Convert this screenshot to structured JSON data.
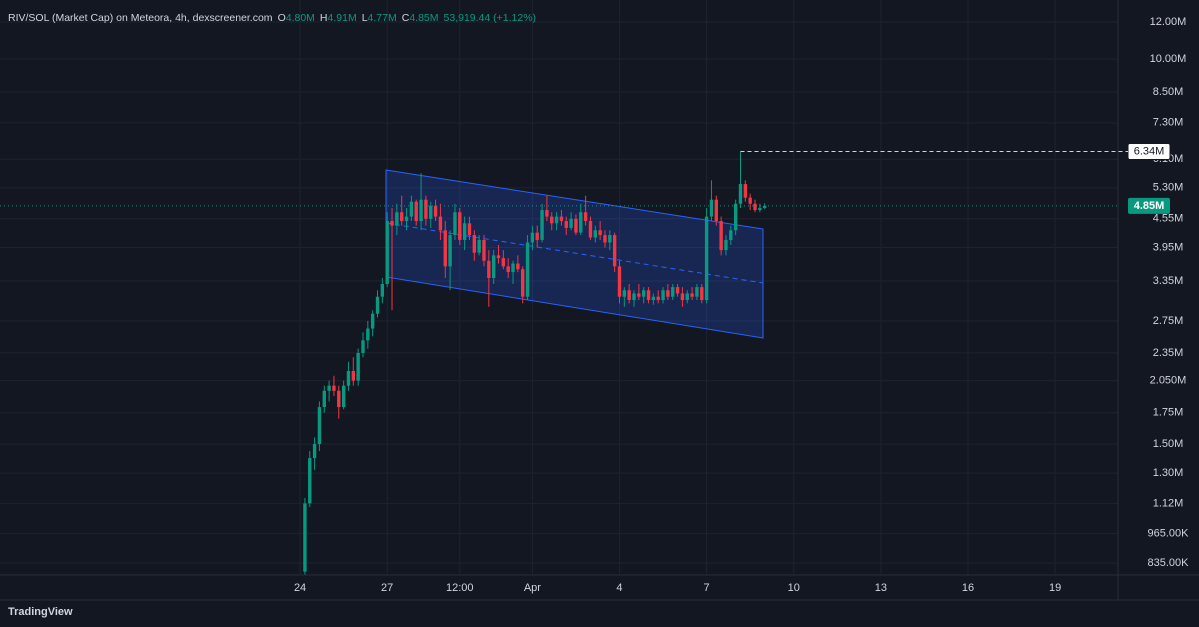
{
  "chart_data": {
    "type": "candlestick",
    "header": {
      "title": "RIV/SOL (Market Cap) on Meteora, 4h, dexscreener.com",
      "ohlc": [
        {
          "key": "O",
          "value": "4.80M"
        },
        {
          "key": "H",
          "value": "4.91M"
        },
        {
          "key": "L",
          "value": "4.77M"
        },
        {
          "key": "C",
          "value": "4.85M"
        }
      ],
      "change": "53,919.44 (+1.12%)"
    },
    "brand": "TradingView",
    "log_scale": true,
    "grid": true,
    "up_color": "#089981",
    "down_color": "#f23645",
    "ylim": [
      787000,
      13370000
    ],
    "yticks": [
      {
        "value": 12000000,
        "label": "12.00M"
      },
      {
        "value": 10000000,
        "label": "10.00M"
      },
      {
        "value": 8500000,
        "label": "8.50M"
      },
      {
        "value": 7300000,
        "label": "7.30M"
      },
      {
        "value": 6100000,
        "label": "6.10M"
      },
      {
        "value": 5300000,
        "label": "5.30M"
      },
      {
        "value": 4550000,
        "label": "4.55M"
      },
      {
        "value": 3950000,
        "label": "3.95M"
      },
      {
        "value": 3350000,
        "label": "3.35M"
      },
      {
        "value": 2750000,
        "label": "2.75M"
      },
      {
        "value": 2350000,
        "label": "2.35M"
      },
      {
        "value": 2050000,
        "label": "2.050M"
      },
      {
        "value": 1750000,
        "label": "1.75M"
      },
      {
        "value": 1500000,
        "label": "1.50M"
      },
      {
        "value": 1300000,
        "label": "1.30M"
      },
      {
        "value": 1120000,
        "label": "1.12M"
      },
      {
        "value": 965000,
        "label": "965.00K"
      },
      {
        "value": 835000,
        "label": "835.00K"
      }
    ],
    "xlim": [
      -62,
      169
    ],
    "xticks": [
      {
        "value": 0,
        "label": "24"
      },
      {
        "value": 18,
        "label": "27"
      },
      {
        "value": 33,
        "label": "12:00"
      },
      {
        "value": 48,
        "label": "Apr"
      },
      {
        "value": 66,
        "label": "4"
      },
      {
        "value": 84,
        "label": "7"
      },
      {
        "value": 102,
        "label": "10"
      },
      {
        "value": 120,
        "label": "13"
      },
      {
        "value": 138,
        "label": "16"
      },
      {
        "value": 156,
        "label": "19"
      }
    ],
    "price_label": {
      "value": 4850000,
      "label": "4.85M"
    },
    "high_label": {
      "value": 6340000,
      "label": "6.34M"
    },
    "x": [
      1,
      2,
      3,
      4,
      5,
      6,
      7,
      8,
      9,
      10,
      11,
      12,
      13,
      14,
      15,
      16,
      17,
      18,
      19,
      20,
      21,
      22,
      23,
      24,
      25,
      26,
      27,
      28,
      29,
      30,
      31,
      32,
      33,
      34,
      35,
      36,
      37,
      38,
      39,
      40,
      41,
      42,
      43,
      44,
      45,
      46,
      47,
      48,
      49,
      50,
      51,
      52,
      53,
      54,
      55,
      56,
      57,
      58,
      59,
      60,
      61,
      62,
      63,
      64,
      65,
      66,
      67,
      68,
      69,
      70,
      71,
      72,
      73,
      74,
      75,
      76,
      77,
      78,
      79,
      80,
      81,
      82,
      83,
      84,
      85,
      86,
      87,
      88,
      89,
      90,
      91,
      92,
      93,
      94,
      95,
      96
    ],
    "ohlc": [
      [
        800000,
        1150000,
        780000,
        1120000
      ],
      [
        1120000,
        1450000,
        1100000,
        1400000
      ],
      [
        1400000,
        1550000,
        1320000,
        1500000
      ],
      [
        1500000,
        1850000,
        1450000,
        1800000
      ],
      [
        1800000,
        2000000,
        1750000,
        1950000
      ],
      [
        1950000,
        2050000,
        1850000,
        2000000
      ],
      [
        2000000,
        2100000,
        1900000,
        1950000
      ],
      [
        1950000,
        2000000,
        1700000,
        1800000
      ],
      [
        1800000,
        2050000,
        1780000,
        2000000
      ],
      [
        2000000,
        2250000,
        1950000,
        2150000
      ],
      [
        2150000,
        2300000,
        2000000,
        2050000
      ],
      [
        2050000,
        2400000,
        2000000,
        2350000
      ],
      [
        2350000,
        2600000,
        2300000,
        2500000
      ],
      [
        2500000,
        2750000,
        2400000,
        2650000
      ],
      [
        2650000,
        2900000,
        2550000,
        2850000
      ],
      [
        2850000,
        3200000,
        2800000,
        3100000
      ],
      [
        3100000,
        3400000,
        3000000,
        3300000
      ],
      [
        3300000,
        4700000,
        3250000,
        4500000
      ],
      [
        4500000,
        4800000,
        2900000,
        4400000
      ],
      [
        4400000,
        4900000,
        4200000,
        4700000
      ],
      [
        4700000,
        5100000,
        4400000,
        4500000
      ],
      [
        4500000,
        4800000,
        4300000,
        4600000
      ],
      [
        4600000,
        5100000,
        4500000,
        4950000
      ],
      [
        4950000,
        5000000,
        4400000,
        4500000
      ],
      [
        4500000,
        5700000,
        4300000,
        5000000
      ],
      [
        5000000,
        5100000,
        4400000,
        4550000
      ],
      [
        4550000,
        4950000,
        4350000,
        4850000
      ],
      [
        4850000,
        5000000,
        4500000,
        4600000
      ],
      [
        4600000,
        4900000,
        4100000,
        4300000
      ],
      [
        4300000,
        4500000,
        3400000,
        3600000
      ],
      [
        3600000,
        4300000,
        3200000,
        4200000
      ],
      [
        4200000,
        4900000,
        4100000,
        4700000
      ],
      [
        4700000,
        4800000,
        4000000,
        4100000
      ],
      [
        4100000,
        4600000,
        3900000,
        4450000
      ],
      [
        4450000,
        4600000,
        4100000,
        4200000
      ],
      [
        4200000,
        4300000,
        3700000,
        3850000
      ],
      [
        3850000,
        4200000,
        3800000,
        4100000
      ],
      [
        4100000,
        4200000,
        3600000,
        3700000
      ],
      [
        3700000,
        3900000,
        2950000,
        3400000
      ],
      [
        3400000,
        3900000,
        3300000,
        3800000
      ],
      [
        3800000,
        4000000,
        3650000,
        3750000
      ],
      [
        3750000,
        3900000,
        3550000,
        3600000
      ],
      [
        3600000,
        3750000,
        3400000,
        3500000
      ],
      [
        3500000,
        3700000,
        3300000,
        3650000
      ],
      [
        3650000,
        3800000,
        3500000,
        3550000
      ],
      [
        3550000,
        3600000,
        3000000,
        3100000
      ],
      [
        3100000,
        4200000,
        3050000,
        4050000
      ],
      [
        4050000,
        4400000,
        3900000,
        4250000
      ],
      [
        4250000,
        4400000,
        3950000,
        4100000
      ],
      [
        4100000,
        4900000,
        4050000,
        4750000
      ],
      [
        4750000,
        5100000,
        4500000,
        4600000
      ],
      [
        4600000,
        4700000,
        4300000,
        4450000
      ],
      [
        4450000,
        4700000,
        4300000,
        4600000
      ],
      [
        4600000,
        4750000,
        4400000,
        4500000
      ],
      [
        4500000,
        4600000,
        4200000,
        4350000
      ],
      [
        4350000,
        4700000,
        4300000,
        4550000
      ],
      [
        4550000,
        4650000,
        4200000,
        4250000
      ],
      [
        4250000,
        4900000,
        4200000,
        4700000
      ],
      [
        4700000,
        5100000,
        4400000,
        4500000
      ],
      [
        4500000,
        4600000,
        4100000,
        4150000
      ],
      [
        4150000,
        4400000,
        4050000,
        4300000
      ],
      [
        4300000,
        4500000,
        4100000,
        4200000
      ],
      [
        4200000,
        4300000,
        3950000,
        4050000
      ],
      [
        4050000,
        4300000,
        3900000,
        4200000
      ],
      [
        4200000,
        4250000,
        3500000,
        3600000
      ],
      [
        3600000,
        3700000,
        3000000,
        3100000
      ],
      [
        3100000,
        3250000,
        2950000,
        3200000
      ],
      [
        3200000,
        3300000,
        3000000,
        3050000
      ],
      [
        3050000,
        3200000,
        2950000,
        3150000
      ],
      [
        3150000,
        3300000,
        3050000,
        3100000
      ],
      [
        3100000,
        3250000,
        3000000,
        3200000
      ],
      [
        3200000,
        3250000,
        3000000,
        3050000
      ],
      [
        3050000,
        3150000,
        2980000,
        3100000
      ],
      [
        3100000,
        3200000,
        3000000,
        3050000
      ],
      [
        3050000,
        3250000,
        3000000,
        3200000
      ],
      [
        3200000,
        3300000,
        3050000,
        3100000
      ],
      [
        3100000,
        3300000,
        3050000,
        3250000
      ],
      [
        3250000,
        3300000,
        3100000,
        3150000
      ],
      [
        3150000,
        3250000,
        2950000,
        3050000
      ],
      [
        3050000,
        3200000,
        3000000,
        3150000
      ],
      [
        3150000,
        3250000,
        3050000,
        3100000
      ],
      [
        3100000,
        3300000,
        3050000,
        3250000
      ],
      [
        3250000,
        3300000,
        3000000,
        3050000
      ],
      [
        3050000,
        4800000,
        3000000,
        4600000
      ],
      [
        4600000,
        5500000,
        4500000,
        5000000
      ],
      [
        5000000,
        5100000,
        4400000,
        4500000
      ],
      [
        4500000,
        4600000,
        3800000,
        3900000
      ],
      [
        3900000,
        4200000,
        3800000,
        4100000
      ],
      [
        4100000,
        4400000,
        4000000,
        4300000
      ],
      [
        4300000,
        5000000,
        4200000,
        4900000
      ],
      [
        4900000,
        6340000,
        4800000,
        5400000
      ],
      [
        5400000,
        5500000,
        4950000,
        5050000
      ],
      [
        5050000,
        5150000,
        4750000,
        4900000
      ],
      [
        4900000,
        5000000,
        4700000,
        4750000
      ],
      [
        4750000,
        4900000,
        4700000,
        4800000
      ],
      [
        4800000,
        4910000,
        4770000,
        4850000
      ]
    ]
  }
}
